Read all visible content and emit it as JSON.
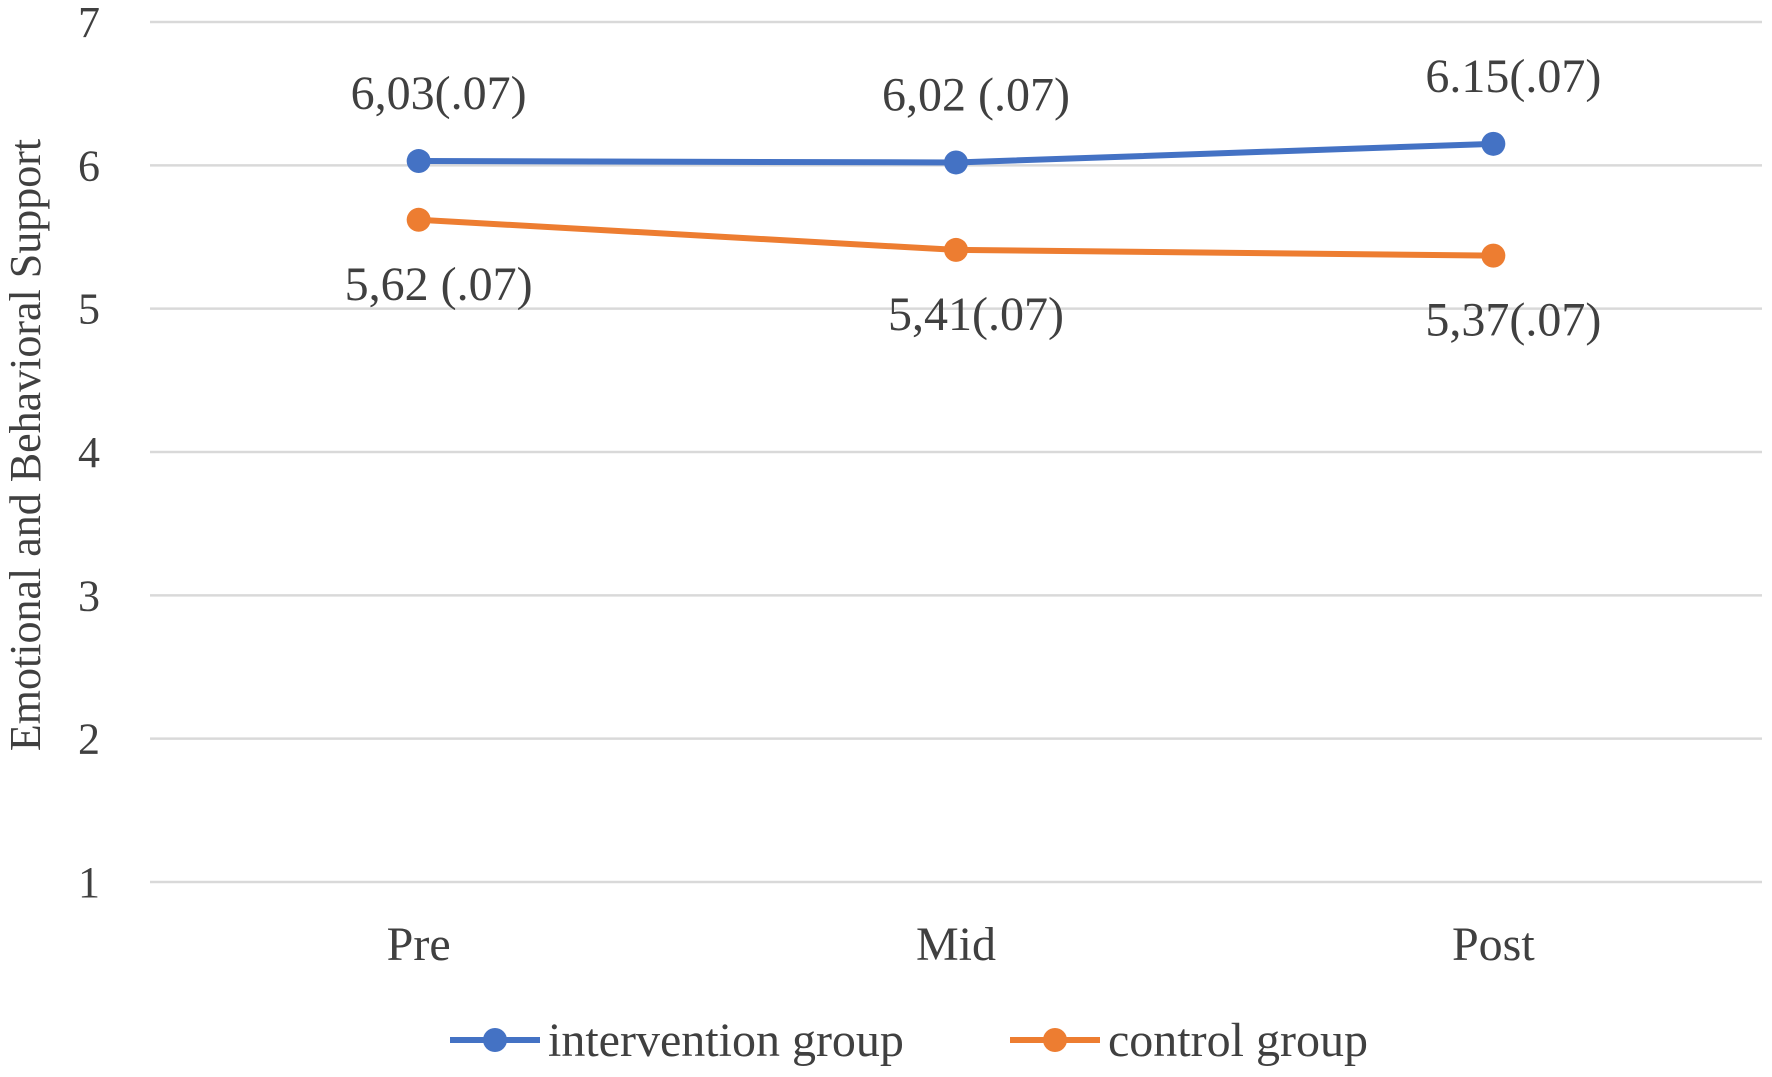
{
  "chart_data": {
    "type": "line",
    "title": "",
    "xlabel": "",
    "ylabel": "Emotional and Behavioral Support",
    "categories": [
      "Pre",
      "Mid",
      "Post"
    ],
    "ylim": [
      1,
      7
    ],
    "yticks": [
      1,
      2,
      3,
      4,
      5,
      6,
      7
    ],
    "grid": true,
    "legend_position": "bottom",
    "series": [
      {
        "name": "intervention group",
        "color": "#4472C4",
        "values": [
          6.03,
          6.02,
          6.15
        ],
        "labels": [
          "6,03(.07)",
          "6,02 (.07)",
          "6.15(.07)"
        ],
        "label_position": "above"
      },
      {
        "name": "control group",
        "color": "#ED7D31",
        "values": [
          5.62,
          5.41,
          5.37
        ],
        "labels": [
          "5,62 (.07)",
          "5,41(.07)",
          "5,37(.07)"
        ],
        "label_position": "below"
      }
    ]
  }
}
